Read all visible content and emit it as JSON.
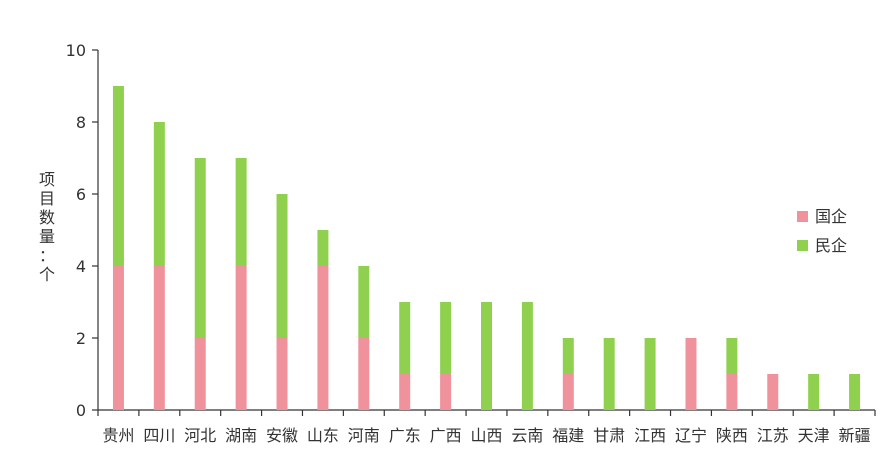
{
  "chart_data": {
    "type": "bar",
    "stacked": true,
    "categories": [
      "贵州",
      "四川",
      "河北",
      "湖南",
      "安徽",
      "山东",
      "河南",
      "广东",
      "广西",
      "山西",
      "云南",
      "福建",
      "甘肃",
      "江西",
      "辽宁",
      "陕西",
      "江苏",
      "天津",
      "新疆"
    ],
    "series": [
      {
        "name": "国企",
        "color": "#f0929c",
        "values": [
          4,
          4,
          2,
          4,
          2,
          4,
          2,
          1,
          1,
          0,
          0,
          1,
          0,
          0,
          2,
          1,
          1,
          0,
          0
        ]
      },
      {
        "name": "民企",
        "color": "#8fd14f",
        "values": [
          5,
          4,
          5,
          3,
          4,
          1,
          2,
          2,
          2,
          3,
          3,
          1,
          2,
          2,
          0,
          1,
          0,
          1,
          1
        ]
      }
    ],
    "ylabel": "项目数量：个",
    "ylim": [
      0,
      10
    ],
    "yticks": [
      "0",
      "2",
      "4",
      "6",
      "8",
      "10"
    ],
    "grid": false,
    "legend_position": "right"
  }
}
